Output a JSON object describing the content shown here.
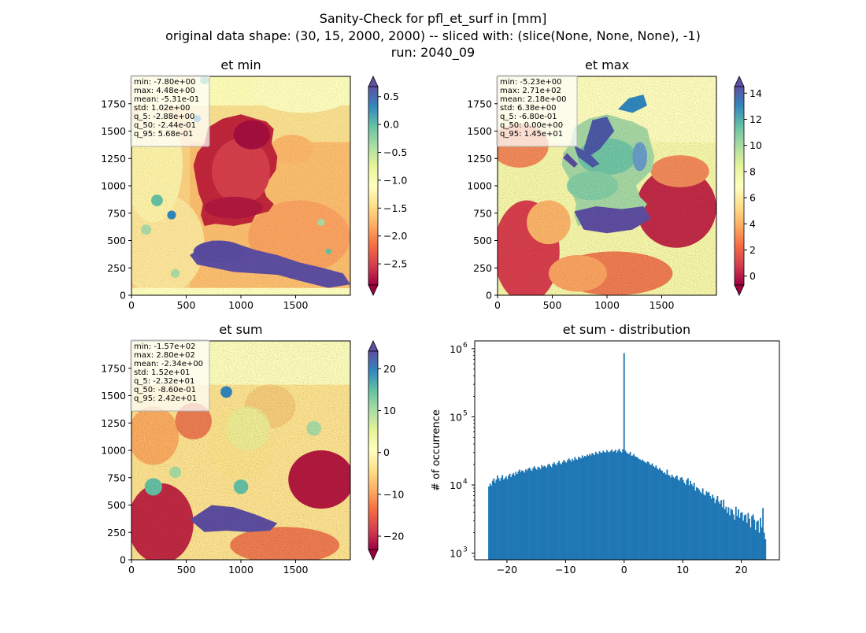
{
  "suptitle": [
    "Sanity-Check for pfl_et_surf in [mm]",
    "original data shape: (30, 15, 2000, 2000) -- sliced with: (slice(None, None, None), -1)",
    "run: 2040_09"
  ],
  "colors": {
    "spectral": [
      "#9e0142",
      "#d53e4f",
      "#f46d43",
      "#fdae61",
      "#fee08b",
      "#ffffbf",
      "#e6f598",
      "#abdda4",
      "#66c2a5",
      "#3288bd",
      "#5e4fa2"
    ],
    "histogram_bar": "#1f77b4",
    "stats_box_border": "#b0b0b0"
  },
  "chart_data": [
    {
      "type": "heatmap",
      "title": "et min",
      "xlim": [
        0,
        2000
      ],
      "ylim": [
        0,
        2000
      ],
      "xticks": [
        0,
        500,
        1000,
        1500
      ],
      "yticks": [
        0,
        250,
        500,
        750,
        1000,
        1250,
        1500,
        1750
      ],
      "colormap": "Spectral",
      "vmin": -2.88,
      "vmax": 0.68,
      "colorbar_ticks": [
        -2.5,
        -2.0,
        -1.5,
        -1.0,
        -0.5,
        0.0,
        0.5
      ],
      "colorbar_ticklabels": [
        "−2.5",
        "−2.0",
        "−1.5",
        "−1.0",
        "−0.5",
        "0.0",
        "0.5"
      ],
      "stats": [
        "min: -7.80e+00",
        "max: 4.48e+00",
        "mean: -5.31e-01",
        "std: 1.02e+00",
        "q_5: -2.88e+00",
        "q_50: -2.44e-01",
        "q_95: 5.68e-01"
      ]
    },
    {
      "type": "heatmap",
      "title": "et max",
      "xlim": [
        0,
        2000
      ],
      "ylim": [
        0,
        2000
      ],
      "xticks": [
        0,
        500,
        1000,
        1500
      ],
      "yticks": [
        0,
        250,
        500,
        750,
        1000,
        1250,
        1500,
        1750
      ],
      "colormap": "Spectral",
      "vmin": -0.68,
      "vmax": 14.5,
      "colorbar_ticks": [
        0,
        2,
        4,
        6,
        8,
        10,
        12,
        14
      ],
      "colorbar_ticklabels": [
        "0",
        "2",
        "4",
        "6",
        "8",
        "10",
        "12",
        "14"
      ],
      "stats": [
        "min: -5.23e+00",
        "max: 2.71e+02",
        "mean: 2.18e+00",
        "std: 6.38e+00",
        "q_5: -6.80e-01",
        "q_50: 0.00e+00",
        "q_95: 1.45e+01"
      ]
    },
    {
      "type": "heatmap",
      "title": "et sum",
      "xlim": [
        0,
        2000
      ],
      "ylim": [
        0,
        2000
      ],
      "xticks": [
        0,
        500,
        1000,
        1500
      ],
      "yticks": [
        0,
        250,
        500,
        750,
        1000,
        1250,
        1500,
        1750
      ],
      "colormap": "Spectral",
      "vmin": -23.2,
      "vmax": 24.2,
      "colorbar_ticks": [
        -20,
        -10,
        0,
        10,
        20
      ],
      "colorbar_ticklabels": [
        "−20",
        "−10",
        "0",
        "10",
        "20"
      ],
      "stats": [
        "min: -1.57e+02",
        "max: 2.80e+02",
        "mean: -2.34e+00",
        "std: 1.52e+01",
        "q_5: -2.32e+01",
        "q_50: -8.60e-01",
        "q_95: 2.42e+01"
      ]
    },
    {
      "type": "bar",
      "title": "et sum - distribution",
      "ylabel": "# of occurrence",
      "xlabel": "",
      "yscale": "log",
      "xlim": [
        -25.5,
        26.5
      ],
      "ylim": [
        800,
        1300000
      ],
      "xticks": [
        -20,
        -10,
        0,
        10,
        20
      ],
      "xticklabels": [
        "−20",
        "−10",
        "0",
        "10",
        "20"
      ],
      "yticks": [
        1000,
        10000,
        100000,
        1000000
      ],
      "yticklabels": [
        "10",
        "10",
        "10",
        "10"
      ],
      "ytick_exponents": [
        "3",
        "4",
        "5",
        "6"
      ],
      "bin_start": -23.2,
      "bin_end": 24.2,
      "counts": [
        9500,
        10500,
        9800,
        11500,
        12500,
        10800,
        12000,
        13800,
        12500,
        11500,
        12800,
        14000,
        12000,
        12600,
        13400,
        12200,
        13800,
        14600,
        13000,
        14200,
        15000,
        13800,
        15600,
        14500,
        15900,
        16800,
        15500,
        16400,
        16000,
        15200,
        17000,
        16300,
        17400,
        18000,
        16900,
        16100,
        17900,
        18800,
        17500,
        16700,
        18600,
        18000,
        17200,
        19600,
        18400,
        19200,
        18700,
        17900,
        19800,
        20500,
        19100,
        18300,
        20400,
        21500,
        20200,
        19400,
        21200,
        22600,
        20800,
        20100,
        21800,
        23400,
        22000,
        21300,
        23000,
        24600,
        23400,
        22100,
        24200,
        22800,
        25800,
        24000,
        23400,
        26000,
        25100,
        24500,
        27200,
        25300,
        26800,
        26100,
        27900,
        26900,
        28600,
        27200,
        29300,
        28700,
        27500,
        30800,
        29100,
        28400,
        31200,
        30000,
        29500,
        31800,
        30600,
        29700,
        32500,
        30800,
        30100,
        31600,
        33200,
        30500,
        31400,
        33000,
        29800,
        31900,
        34000,
        31200,
        30000,
        33500,
        860000,
        32000,
        30000,
        29000,
        28300,
        30700,
        26900,
        27100,
        28400,
        26200,
        26000,
        25200,
        24200,
        23700,
        22800,
        23600,
        22400,
        21700,
        20900,
        22100,
        21600,
        20100,
        19600,
        20700,
        18800,
        18100,
        19300,
        17500,
        16800,
        17800,
        16600,
        16100,
        14900,
        15300,
        14300,
        16800,
        14100,
        13800,
        12900,
        14200,
        13100,
        12500,
        13300,
        13800,
        12000,
        11600,
        12800,
        13000,
        11900,
        10800,
        10100,
        11900,
        12600,
        9900,
        11500,
        10300,
        9600,
        10800,
        8300,
        9300,
        9000,
        8600,
        8000,
        7600,
        8900,
        7300,
        7000,
        8100,
        7700,
        7900,
        6900,
        6300,
        7200,
        6500,
        5400,
        6100,
        6900,
        5700,
        5300,
        6000,
        4700,
        6100,
        4400,
        4800,
        3900,
        4700,
        3600,
        4500,
        4300,
        3700,
        3100,
        4800,
        3500,
        4400,
        3300,
        3900,
        4000,
        3000,
        3600,
        3700,
        2800,
        3900,
        3200,
        2400,
        3500,
        3700,
        3100,
        2200,
        2900,
        3000,
        2000,
        3300,
        2400,
        4600,
        2000,
        1600
      ]
    }
  ]
}
